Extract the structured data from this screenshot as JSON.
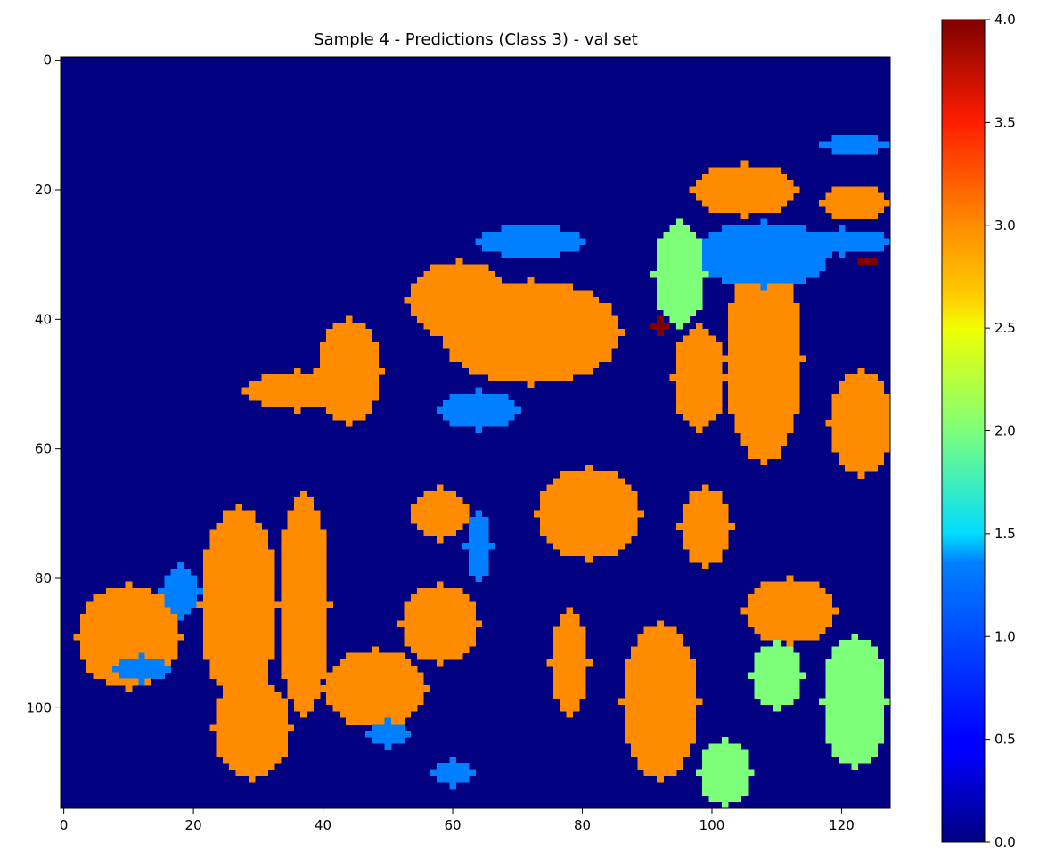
{
  "chart_data": {
    "type": "heatmap",
    "title": "Sample 4 - Predictions (Class 3) - val set",
    "grid_cols": 128,
    "grid_rows": 116,
    "xlim": [
      -0.5,
      127.5
    ],
    "ylim": [
      115.5,
      -0.5
    ],
    "x_ticks": [
      0,
      20,
      40,
      60,
      80,
      100,
      120
    ],
    "y_ticks": [
      0,
      20,
      40,
      60,
      80,
      100
    ],
    "colormap": "jet",
    "value_range": [
      0.0,
      4.0
    ],
    "colorbar_ticks": [
      "0.0",
      "0.5",
      "1.0",
      "1.5",
      "2.0",
      "2.5",
      "3.0",
      "3.5",
      "4.0"
    ],
    "class_colors": {
      "0": "#000080",
      "1": "#0080ff",
      "2": "#7dff7a",
      "3": "#ff8c00",
      "4": "#800000"
    },
    "background_value": 0,
    "regions": [
      {
        "value": 3,
        "shape": "ellipse",
        "cx": 72,
        "cy": 42,
        "rx": 14,
        "ry": 8
      },
      {
        "value": 3,
        "shape": "ellipse",
        "cx": 61,
        "cy": 37,
        "rx": 8,
        "ry": 6
      },
      {
        "value": 1,
        "shape": "ellipse",
        "cx": 64,
        "cy": 54,
        "rx": 6,
        "ry": 3
      },
      {
        "value": 1,
        "shape": "ellipse",
        "cx": 72,
        "cy": 28,
        "rx": 8,
        "ry": 2.5
      },
      {
        "value": 3,
        "shape": "ellipse",
        "cx": 44,
        "cy": 48,
        "rx": 5,
        "ry": 8
      },
      {
        "value": 3,
        "shape": "ellipse",
        "cx": 36,
        "cy": 51,
        "rx": 8,
        "ry": 3
      },
      {
        "value": 3,
        "shape": "ellipse",
        "cx": 27,
        "cy": 84,
        "rx": 6,
        "ry": 15
      },
      {
        "value": 3,
        "shape": "ellipse",
        "cx": 37,
        "cy": 84,
        "rx": 4,
        "ry": 17
      },
      {
        "value": 3,
        "shape": "ellipse",
        "cx": 48,
        "cy": 97,
        "rx": 8,
        "ry": 6
      },
      {
        "value": 3,
        "shape": "ellipse",
        "cx": 10,
        "cy": 89,
        "rx": 8,
        "ry": 8
      },
      {
        "value": 1,
        "shape": "ellipse",
        "cx": 18,
        "cy": 82,
        "rx": 3,
        "ry": 4
      },
      {
        "value": 3,
        "shape": "ellipse",
        "cx": 29,
        "cy": 103,
        "rx": 6,
        "ry": 8
      },
      {
        "value": 3,
        "shape": "ellipse",
        "cx": 58,
        "cy": 70,
        "rx": 4.5,
        "ry": 4
      },
      {
        "value": 3,
        "shape": "ellipse",
        "cx": 58,
        "cy": 87,
        "rx": 6,
        "ry": 6
      },
      {
        "value": 1,
        "shape": "ellipse",
        "cx": 64,
        "cy": 75,
        "rx": 2,
        "ry": 5
      },
      {
        "value": 3,
        "shape": "ellipse",
        "cx": 81,
        "cy": 70,
        "rx": 8,
        "ry": 7
      },
      {
        "value": 3,
        "shape": "ellipse",
        "cx": 78,
        "cy": 93,
        "rx": 3,
        "ry": 8
      },
      {
        "value": 3,
        "shape": "ellipse",
        "cx": 92,
        "cy": 99,
        "rx": 6,
        "ry": 12
      },
      {
        "value": 3,
        "shape": "ellipse",
        "cx": 99,
        "cy": 72,
        "rx": 4,
        "ry": 6
      },
      {
        "value": 3,
        "shape": "ellipse",
        "cx": 108,
        "cy": 46,
        "rx": 6,
        "ry": 16
      },
      {
        "value": 3,
        "shape": "ellipse",
        "cx": 98,
        "cy": 49,
        "rx": 4,
        "ry": 8
      },
      {
        "value": 3,
        "shape": "ellipse",
        "cx": 105,
        "cy": 20,
        "rx": 8,
        "ry": 4
      },
      {
        "value": 1,
        "shape": "ellipse",
        "cx": 108,
        "cy": 30,
        "rx": 10,
        "ry": 5
      },
      {
        "value": 2,
        "shape": "ellipse",
        "cx": 95,
        "cy": 33,
        "rx": 4,
        "ry": 8
      },
      {
        "value": 3,
        "shape": "ellipse",
        "cx": 123,
        "cy": 56,
        "rx": 5,
        "ry": 8
      },
      {
        "value": 3,
        "shape": "ellipse",
        "cx": 122,
        "cy": 22,
        "rx": 5,
        "ry": 2.5
      },
      {
        "value": 1,
        "shape": "ellipse",
        "cx": 120,
        "cy": 28,
        "rx": 7,
        "ry": 2
      },
      {
        "value": 3,
        "shape": "ellipse",
        "cx": 112,
        "cy": 85,
        "rx": 7,
        "ry": 5
      },
      {
        "value": 2,
        "shape": "ellipse",
        "cx": 110,
        "cy": 95,
        "rx": 4,
        "ry": 5
      },
      {
        "value": 2,
        "shape": "ellipse",
        "cx": 122,
        "cy": 99,
        "rx": 5,
        "ry": 10
      },
      {
        "value": 2,
        "shape": "ellipse",
        "cx": 102,
        "cy": 110,
        "rx": 4,
        "ry": 5
      },
      {
        "value": 1,
        "shape": "ellipse",
        "cx": 122,
        "cy": 13,
        "rx": 5,
        "ry": 1.5
      },
      {
        "value": 1,
        "shape": "ellipse",
        "cx": 12,
        "cy": 94,
        "rx": 4,
        "ry": 2
      },
      {
        "value": 1,
        "shape": "ellipse",
        "cx": 50,
        "cy": 104,
        "rx": 3,
        "ry": 2
      },
      {
        "value": 1,
        "shape": "ellipse",
        "cx": 60,
        "cy": 110,
        "rx": 3,
        "ry": 2
      },
      {
        "value": 4,
        "shape": "ellipse",
        "cx": 92,
        "cy": 41,
        "rx": 1.5,
        "ry": 1
      },
      {
        "value": 4,
        "shape": "ellipse",
        "cx": 124,
        "cy": 31,
        "rx": 1.5,
        "ry": 0.8
      }
    ]
  }
}
